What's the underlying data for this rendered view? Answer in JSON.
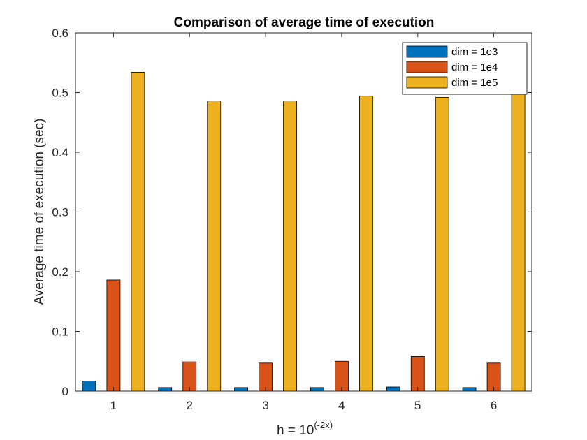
{
  "chart_data": {
    "type": "bar",
    "title": "Comparison of average time of execution",
    "xlabel": "h = 10",
    "xlabel_sup": "(-2x)",
    "ylabel": "Average time of execution (sec)",
    "categories": [
      "1",
      "2",
      "3",
      "4",
      "5",
      "6"
    ],
    "ylim": [
      0,
      0.6
    ],
    "yticks": [
      "0",
      "0.1",
      "0.2",
      "0.3",
      "0.4",
      "0.5",
      "0.6"
    ],
    "series": [
      {
        "name": "dim = 1e3",
        "color": "#0072BD",
        "values": [
          0.017,
          0.006,
          0.006,
          0.006,
          0.007,
          0.006
        ]
      },
      {
        "name": "dim = 1e4",
        "color": "#D95319",
        "values": [
          0.186,
          0.049,
          0.047,
          0.05,
          0.058,
          0.047
        ]
      },
      {
        "name": "dim = 1e5",
        "color": "#EDB120",
        "values": [
          0.534,
          0.486,
          0.486,
          0.494,
          0.492,
          0.503
        ]
      }
    ],
    "grid": false,
    "legend_position": "top-right"
  }
}
